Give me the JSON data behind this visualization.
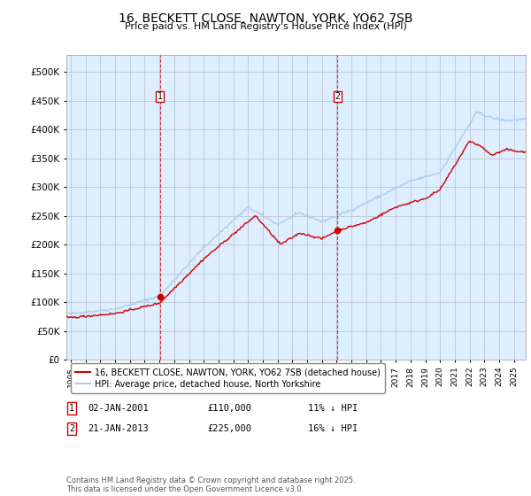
{
  "title": "16, BECKETT CLOSE, NAWTON, YORK, YO62 7SB",
  "subtitle": "Price paid vs. HM Land Registry's House Price Index (HPI)",
  "ytick_values": [
    0,
    50000,
    100000,
    150000,
    200000,
    250000,
    300000,
    350000,
    400000,
    450000,
    500000
  ],
  "ylim": [
    0,
    530000
  ],
  "xlim_start": 1994.7,
  "xlim_end": 2025.8,
  "hpi_color": "#aaccee",
  "price_color": "#cc0000",
  "vline_color": "#cc0000",
  "background_color": "#ddeeff",
  "sale1_x": 2001.04,
  "sale1_y": 110000,
  "sale1_label": "1",
  "sale2_x": 2013.05,
  "sale2_y": 225000,
  "sale2_label": "2",
  "marker_y": 457000,
  "legend1": "16, BECKETT CLOSE, NAWTON, YORK, YO62 7SB (detached house)",
  "legend2": "HPI: Average price, detached house, North Yorkshire",
  "table_row1": [
    "1",
    "02-JAN-2001",
    "£110,000",
    "11% ↓ HPI"
  ],
  "table_row2": [
    "2",
    "21-JAN-2013",
    "£225,000",
    "16% ↓ HPI"
  ],
  "footnote": "Contains HM Land Registry data © Crown copyright and database right 2025.\nThis data is licensed under the Open Government Licence v3.0.",
  "grid_color": "#bbbbcc",
  "title_fontsize": 10,
  "subtitle_fontsize": 8.5,
  "tick_fontsize": 7
}
